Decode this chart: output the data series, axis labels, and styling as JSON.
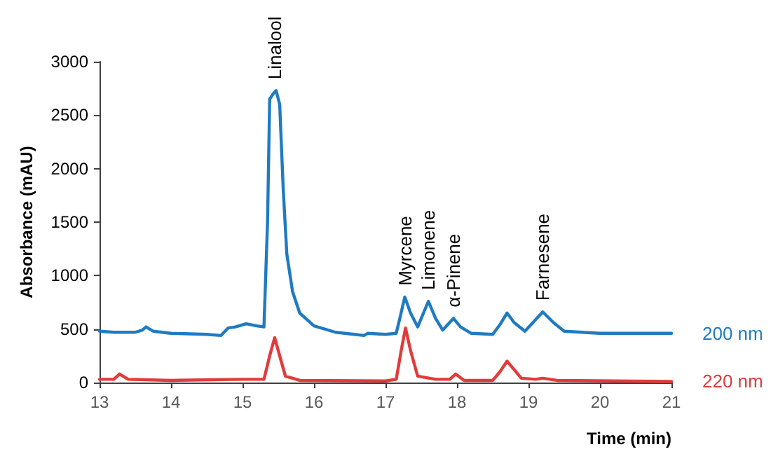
{
  "chart_data": {
    "type": "line",
    "xlabel": "Time (min)",
    "ylabel": "Absorbance (mAU)",
    "xlim": [
      13,
      21
    ],
    "xticks": [
      13,
      14,
      15,
      16,
      17,
      18,
      19,
      20,
      21
    ],
    "ylim": [
      0,
      3000
    ],
    "yticks": [
      0,
      500,
      1000,
      1500,
      2000,
      2500,
      3000
    ],
    "grid": false,
    "legend": false,
    "marker": "none",
    "line_style": "solid",
    "series": [
      {
        "name": "200 nm",
        "color": "#1f7bc1",
        "x": [
          13,
          13.2,
          13.5,
          13.6,
          13.65,
          13.75,
          14,
          14.5,
          14.7,
          14.8,
          14.9,
          15.05,
          15.2,
          15.3,
          15.35,
          15.38,
          15.43,
          15.47,
          15.52,
          15.57,
          15.62,
          15.7,
          15.8,
          16,
          16.3,
          16.7,
          16.75,
          17,
          17.15,
          17.2,
          17.27,
          17.35,
          17.45,
          17.6,
          17.7,
          17.8,
          17.95,
          18.05,
          18.2,
          18.5,
          18.6,
          18.7,
          18.8,
          18.95,
          19.2,
          19.35,
          19.5,
          20,
          21
        ],
        "values": [
          480,
          470,
          470,
          490,
          520,
          480,
          460,
          450,
          440,
          510,
          520,
          550,
          530,
          520,
          1500,
          2650,
          2700,
          2730,
          2600,
          1800,
          1200,
          850,
          650,
          530,
          470,
          440,
          460,
          450,
          460,
          600,
          800,
          650,
          520,
          760,
          600,
          490,
          600,
          520,
          460,
          450,
          540,
          650,
          560,
          480,
          660,
          560,
          480,
          460,
          460
        ]
      },
      {
        "name": "220 nm",
        "color": "#e03c3c",
        "x": [
          13,
          13.2,
          13.28,
          13.4,
          14,
          15,
          15.3,
          15.38,
          15.45,
          15.52,
          15.6,
          15.8,
          17,
          17.15,
          17.22,
          17.28,
          17.35,
          17.45,
          17.7,
          17.9,
          17.98,
          18.1,
          18.5,
          18.6,
          18.7,
          18.8,
          18.9,
          19.1,
          19.2,
          19.4,
          21
        ],
        "values": [
          30,
          30,
          80,
          30,
          20,
          30,
          30,
          250,
          420,
          250,
          60,
          20,
          15,
          30,
          300,
          510,
          300,
          60,
          30,
          30,
          80,
          20,
          20,
          100,
          200,
          120,
          40,
          30,
          40,
          20,
          10
        ]
      }
    ],
    "annotations": [
      {
        "text": "Linalool",
        "x": 15.45,
        "y": 2730
      },
      {
        "text": "Myrcene",
        "x": 17.27,
        "y": 800
      },
      {
        "text": "Limonene",
        "x": 17.6,
        "y": 760
      },
      {
        "text": "α-Pinene",
        "x": 17.95,
        "y": 600
      },
      {
        "text": "Farnesene",
        "x": 19.2,
        "y": 660
      }
    ]
  }
}
